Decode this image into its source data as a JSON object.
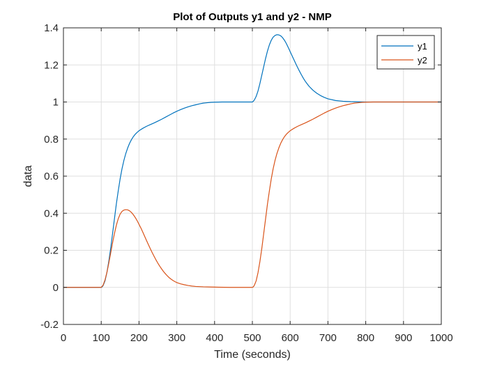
{
  "chart_data": {
    "type": "line",
    "title": "Plot of Outputs y1 and y2 - NMP",
    "xlabel": "Time (seconds)",
    "ylabel": "data",
    "xlim": [
      0,
      1000
    ],
    "ylim": [
      -0.2,
      1.4
    ],
    "xticks": [
      0,
      100,
      200,
      300,
      400,
      500,
      600,
      700,
      800,
      900,
      1000
    ],
    "yticks": [
      -0.2,
      0,
      0.2,
      0.4,
      0.6,
      0.8,
      1,
      1.2,
      1.4
    ],
    "ytick_labels": [
      "-0.2",
      "0",
      "0.2",
      "0.4",
      "0.6",
      "0.8",
      "1",
      "1.2",
      "1.4"
    ],
    "grid": true,
    "legend": "top-right",
    "series": [
      {
        "name": "y1",
        "color": "#0072BD",
        "x": [
          0,
          100,
          102,
          105,
          110,
          115,
          120,
          125,
          130,
          135,
          140,
          145,
          150,
          155,
          160,
          165,
          170,
          175,
          180,
          185,
          190,
          195,
          200,
          210,
          220,
          230,
          240,
          250,
          260,
          270,
          280,
          290,
          300,
          310,
          320,
          330,
          340,
          350,
          360,
          370,
          380,
          390,
          400,
          420,
          440,
          460,
          480,
          500,
          502,
          505,
          510,
          515,
          520,
          525,
          530,
          535,
          540,
          545,
          550,
          555,
          560,
          565,
          570,
          575,
          580,
          585,
          590,
          595,
          600,
          605,
          610,
          615,
          620,
          625,
          630,
          635,
          640,
          645,
          650,
          660,
          670,
          680,
          690,
          700,
          720,
          740,
          760,
          780,
          800,
          850,
          900,
          950,
          1000
        ],
        "y": [
          0,
          0,
          0.002,
          0.01,
          0.035,
          0.08,
          0.14,
          0.21,
          0.29,
          0.37,
          0.45,
          0.52,
          0.585,
          0.64,
          0.685,
          0.722,
          0.752,
          0.777,
          0.797,
          0.813,
          0.826,
          0.836,
          0.845,
          0.858,
          0.869,
          0.878,
          0.887,
          0.897,
          0.907,
          0.918,
          0.929,
          0.94,
          0.95,
          0.959,
          0.967,
          0.974,
          0.98,
          0.985,
          0.99,
          0.994,
          0.996,
          0.998,
          0.999,
          1.0,
          1.0,
          1.0,
          1.0,
          1.0,
          1.003,
          1.01,
          1.03,
          1.06,
          1.1,
          1.145,
          1.19,
          1.235,
          1.275,
          1.308,
          1.333,
          1.35,
          1.359,
          1.363,
          1.362,
          1.357,
          1.347,
          1.333,
          1.315,
          1.294,
          1.272,
          1.25,
          1.228,
          1.206,
          1.185,
          1.165,
          1.146,
          1.128,
          1.112,
          1.098,
          1.085,
          1.064,
          1.048,
          1.035,
          1.025,
          1.017,
          1.008,
          1.004,
          1.002,
          1.001,
          1.0,
          1.0,
          1.0,
          1.0,
          1.0
        ]
      },
      {
        "name": "y2",
        "color": "#D95319",
        "x": [
          0,
          100,
          105,
          110,
          115,
          120,
          125,
          130,
          135,
          140,
          145,
          150,
          155,
          160,
          165,
          170,
          175,
          180,
          185,
          190,
          195,
          200,
          205,
          210,
          215,
          220,
          225,
          230,
          235,
          240,
          245,
          250,
          255,
          260,
          265,
          270,
          275,
          280,
          285,
          290,
          295,
          300,
          310,
          320,
          330,
          340,
          350,
          370,
          390,
          410,
          440,
          470,
          500,
          502,
          505,
          510,
          515,
          520,
          525,
          530,
          535,
          540,
          545,
          550,
          555,
          560,
          565,
          570,
          575,
          580,
          585,
          590,
          595,
          600,
          610,
          620,
          630,
          640,
          650,
          660,
          670,
          680,
          690,
          700,
          710,
          720,
          730,
          740,
          750,
          760,
          770,
          780,
          790,
          800,
          820,
          850,
          900,
          950,
          1000
        ],
        "y": [
          0,
          0,
          0.012,
          0.04,
          0.08,
          0.13,
          0.185,
          0.24,
          0.29,
          0.335,
          0.37,
          0.395,
          0.41,
          0.417,
          0.419,
          0.418,
          0.413,
          0.404,
          0.392,
          0.377,
          0.36,
          0.34,
          0.32,
          0.298,
          0.275,
          0.252,
          0.23,
          0.208,
          0.187,
          0.167,
          0.148,
          0.13,
          0.114,
          0.099,
          0.085,
          0.073,
          0.062,
          0.052,
          0.044,
          0.037,
          0.031,
          0.026,
          0.019,
          0.014,
          0.01,
          0.007,
          0.005,
          0.003,
          0.002,
          0.001,
          0.0,
          0.0,
          0.0,
          0.002,
          0.01,
          0.035,
          0.08,
          0.14,
          0.21,
          0.29,
          0.37,
          0.45,
          0.52,
          0.585,
          0.64,
          0.685,
          0.722,
          0.752,
          0.777,
          0.797,
          0.813,
          0.826,
          0.836,
          0.845,
          0.858,
          0.869,
          0.878,
          0.887,
          0.897,
          0.907,
          0.918,
          0.929,
          0.94,
          0.95,
          0.959,
          0.967,
          0.974,
          0.98,
          0.985,
          0.99,
          0.994,
          0.996,
          0.998,
          0.999,
          1.0,
          1.0,
          1.0,
          1.0,
          1.0
        ]
      }
    ]
  }
}
